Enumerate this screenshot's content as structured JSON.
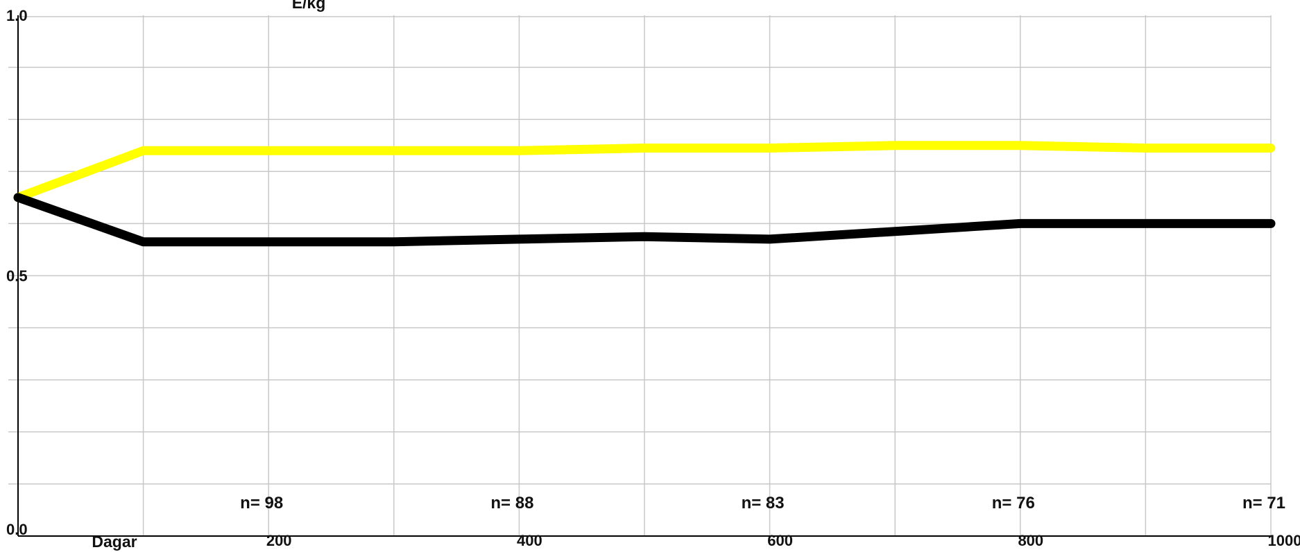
{
  "chart_data": {
    "type": "line",
    "ylabel": "E/kg",
    "xlabel": "Dagar",
    "xlim": [
      0,
      1000
    ],
    "ylim": [
      0.0,
      1.0
    ],
    "y_tick_labels": [
      {
        "value": 0.0,
        "label": "0.0"
      },
      {
        "value": 0.5,
        "label": "0.5"
      },
      {
        "value": 1.0,
        "label": "1.0"
      }
    ],
    "x_tick_labels": [
      {
        "value": 200,
        "label": "200"
      },
      {
        "value": 400,
        "label": "400"
      },
      {
        "value": 600,
        "label": "600"
      },
      {
        "value": 800,
        "label": "800"
      },
      {
        "value": 1000,
        "label": "1000"
      }
    ],
    "grid": true,
    "x_grid_step": 100,
    "y_grid_step": 0.1,
    "series": [
      {
        "color": "#ffff00",
        "x": [
          0,
          100,
          200,
          300,
          400,
          500,
          600,
          700,
          800,
          900,
          1000
        ],
        "y": [
          0.65,
          0.74,
          0.74,
          0.74,
          0.74,
          0.745,
          0.745,
          0.75,
          0.75,
          0.745,
          0.745
        ]
      },
      {
        "color": "#000000",
        "x": [
          0,
          100,
          200,
          300,
          400,
          500,
          600,
          700,
          800,
          900,
          1000
        ],
        "y": [
          0.65,
          0.565,
          0.565,
          0.565,
          0.57,
          0.575,
          0.57,
          0.585,
          0.6,
          0.6,
          0.6
        ]
      }
    ],
    "annotations": [
      {
        "x": 200,
        "text": "n= 98"
      },
      {
        "x": 400,
        "text": "n= 88"
      },
      {
        "x": 600,
        "text": "n= 83"
      },
      {
        "x": 800,
        "text": "n= 76"
      },
      {
        "x": 1000,
        "text": "n= 71"
      }
    ]
  }
}
